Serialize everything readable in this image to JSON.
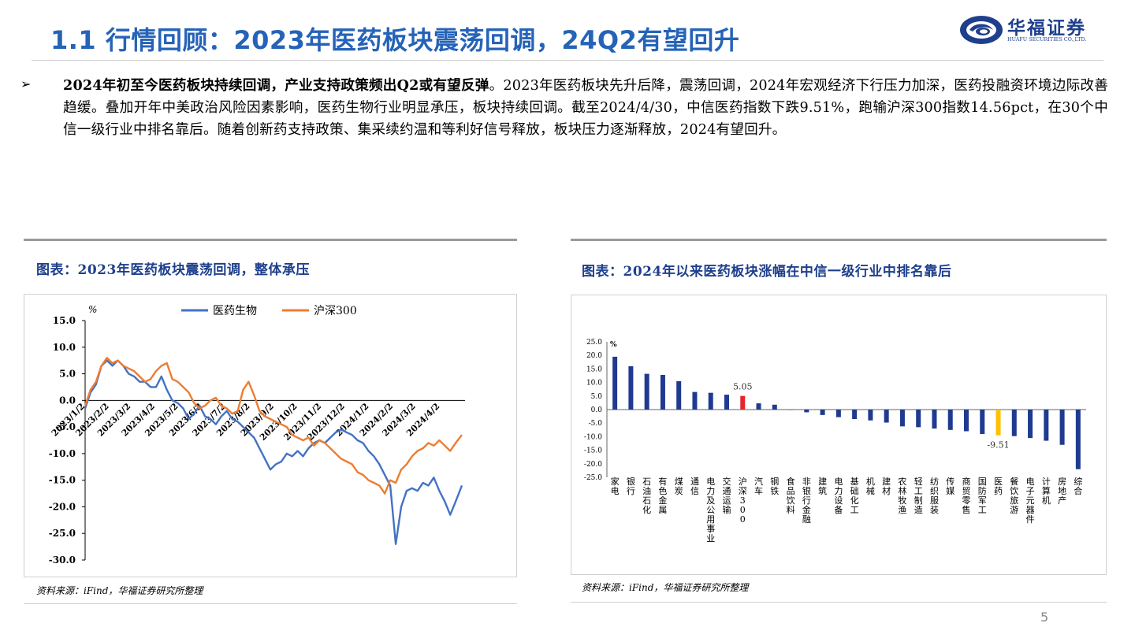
{
  "header": {
    "title": "1.1 行情回顾：2023年医药板块震荡回调，24Q2有望回升",
    "logo_cn": "华福证券",
    "logo_en": "HUAFU SECURITIES CO.,LTD.",
    "page_number": "5"
  },
  "bullet": {
    "mark": "➢",
    "bold": "2024年初至今医药板块持续回调，产业支持政策频出Q2或有望反弹",
    "text": "。2023年医药板块先升后降，震荡回调，2024年宏观经济下行压力加深，医药投融资环境边际改善趋缓。叠加开年中美政治风险因素影响，医药生物行业明显承压，板块持续回调。截至2024/4/30，中信医药指数下跌9.51%，跑输沪深300指数14.56pct，在30个中信一级行业中排名靠后。随着创新药支持政策、集采续约温和等利好信号释放，板块压力逐渐释放，2024有望回升。"
  },
  "left_panel": {
    "title": "图表：2023年医药板块震荡回调，整体承压",
    "source": "资料来源：iFind，华福证券研究所整理"
  },
  "right_panel": {
    "title": "图表：2024年以来医药板块涨幅在中信一级行业中排名靠后",
    "source": "资料来源：iFind，华福证券研究所整理"
  },
  "chart_data": [
    {
      "type": "line",
      "unit_label": "%",
      "ylim": [
        -30,
        15
      ],
      "yticks": [
        "15.0",
        "10.0",
        "5.0",
        "0.0",
        "-5.0",
        "-10.0",
        "-15.0",
        "-20.0",
        "-25.0",
        "-30.0"
      ],
      "x_ticks": [
        "2023/1/2",
        "2023/2/2",
        "2023/3/2",
        "2023/4/2",
        "2023/5/2",
        "2023/6/2",
        "2023/7/2",
        "2023/8/2",
        "2023/9/2",
        "2023/10/2",
        "2023/11/2",
        "2023/12/2",
        "2024/1/2",
        "2024/2/2",
        "2024/3/2",
        "2024/4/2"
      ],
      "legend_position": "top",
      "series": [
        {
          "name": "医药生物",
          "color": "#4472c4",
          "points": [
            [
              "2023/1/2",
              -1.5
            ],
            [
              "2023/1/9",
              1.5
            ],
            [
              "2023/1/16",
              3
            ],
            [
              "2023/1/23",
              6.5
            ],
            [
              "2023/1/30",
              7.5
            ],
            [
              "2023/2/6",
              6.5
            ],
            [
              "2023/2/13",
              7.5
            ],
            [
              "2023/2/20",
              6.5
            ],
            [
              "2023/2/27",
              5
            ],
            [
              "2023/3/6",
              4.5
            ],
            [
              "2023/3/13",
              3.5
            ],
            [
              "2023/3/20",
              3.5
            ],
            [
              "2023/3/27",
              2.5
            ],
            [
              "2023/4/3",
              2.5
            ],
            [
              "2023/4/10",
              4.5
            ],
            [
              "2023/4/17",
              2
            ],
            [
              "2023/4/24",
              0
            ],
            [
              "2023/5/1",
              -0.5
            ],
            [
              "2023/5/8",
              -1.5
            ],
            [
              "2023/5/15",
              -3.5
            ],
            [
              "2023/5/22",
              -2.5
            ],
            [
              "2023/5/29",
              -1
            ],
            [
              "2023/6/5",
              -3
            ],
            [
              "2023/6/12",
              -3.5
            ],
            [
              "2023/6/19",
              -4.5
            ],
            [
              "2023/6/26",
              -3
            ],
            [
              "2023/7/3",
              -2
            ],
            [
              "2023/7/10",
              -3.5
            ],
            [
              "2023/7/17",
              -4
            ],
            [
              "2023/7/24",
              -5
            ],
            [
              "2023/7/31",
              -6
            ],
            [
              "2023/8/7",
              -7
            ],
            [
              "2023/8/14",
              -9
            ],
            [
              "2023/8/21",
              -11
            ],
            [
              "2023/8/28",
              -13
            ],
            [
              "2023/9/4",
              -12
            ],
            [
              "2023/9/11",
              -11.5
            ],
            [
              "2023/9/18",
              -10
            ],
            [
              "2023/9/25",
              -10.5
            ],
            [
              "2023/10/2",
              -9.5
            ],
            [
              "2023/10/9",
              -10.5
            ],
            [
              "2023/10/16",
              -9
            ],
            [
              "2023/10/23",
              -8
            ],
            [
              "2023/10/30",
              -7.5
            ],
            [
              "2023/11/6",
              -8
            ],
            [
              "2023/11/13",
              -7
            ],
            [
              "2023/11/20",
              -6
            ],
            [
              "2023/11/27",
              -5.5
            ],
            [
              "2023/12/4",
              -6
            ],
            [
              "2023/12/11",
              -6.5
            ],
            [
              "2023/12/18",
              -7.5
            ],
            [
              "2023/12/25",
              -8
            ],
            [
              "2024/1/1",
              -9.5
            ],
            [
              "2024/1/8",
              -10.5
            ],
            [
              "2024/1/15",
              -12
            ],
            [
              "2024/1/22",
              -14
            ],
            [
              "2024/1/29",
              -16
            ],
            [
              "2024/2/5",
              -27
            ],
            [
              "2024/2/12",
              -20
            ],
            [
              "2024/2/19",
              -17
            ],
            [
              "2024/2/26",
              -16.5
            ],
            [
              "2024/3/4",
              -17
            ],
            [
              "2024/3/11",
              -15.5
            ],
            [
              "2024/3/18",
              -16
            ],
            [
              "2024/3/25",
              -14.5
            ],
            [
              "2024/4/1",
              -17
            ],
            [
              "2024/4/8",
              -19
            ],
            [
              "2024/4/15",
              -21.5
            ],
            [
              "2024/4/22",
              -19
            ],
            [
              "2024/4/30",
              -16
            ]
          ]
        },
        {
          "name": "沪深300",
          "color": "#ed7d31",
          "points": [
            [
              "2023/1/2",
              -1
            ],
            [
              "2023/1/9",
              2
            ],
            [
              "2023/1/16",
              3.5
            ],
            [
              "2023/1/23",
              6.5
            ],
            [
              "2023/1/30",
              8
            ],
            [
              "2023/2/6",
              7
            ],
            [
              "2023/2/13",
              7.5
            ],
            [
              "2023/2/20",
              6.5
            ],
            [
              "2023/2/27",
              6
            ],
            [
              "2023/3/6",
              5.5
            ],
            [
              "2023/3/13",
              4.5
            ],
            [
              "2023/3/20",
              3.5
            ],
            [
              "2023/3/27",
              4
            ],
            [
              "2023/4/3",
              5.5
            ],
            [
              "2023/4/10",
              6.5
            ],
            [
              "2023/4/17",
              7
            ],
            [
              "2023/4/24",
              4
            ],
            [
              "2023/5/1",
              3.5
            ],
            [
              "2023/5/8",
              2.5
            ],
            [
              "2023/5/15",
              1.5
            ],
            [
              "2023/5/22",
              -0.5
            ],
            [
              "2023/5/29",
              -1.5
            ],
            [
              "2023/6/5",
              -1
            ],
            [
              "2023/6/12",
              0
            ],
            [
              "2023/6/19",
              0.5
            ],
            [
              "2023/6/26",
              -1
            ],
            [
              "2023/7/3",
              -1.5
            ],
            [
              "2023/7/10",
              -2.5
            ],
            [
              "2023/7/17",
              -2
            ],
            [
              "2023/7/24",
              2
            ],
            [
              "2023/7/31",
              3.5
            ],
            [
              "2023/8/7",
              1
            ],
            [
              "2023/8/14",
              -2
            ],
            [
              "2023/8/21",
              -3
            ],
            [
              "2023/8/28",
              -3.5
            ],
            [
              "2023/9/4",
              -4
            ],
            [
              "2023/9/11",
              -4.5
            ],
            [
              "2023/9/18",
              -5
            ],
            [
              "2023/9/25",
              -6.5
            ],
            [
              "2023/10/2",
              -7
            ],
            [
              "2023/10/9",
              -7.5
            ],
            [
              "2023/10/16",
              -7
            ],
            [
              "2023/10/23",
              -8.5
            ],
            [
              "2023/10/30",
              -7.5
            ],
            [
              "2023/11/6",
              -8
            ],
            [
              "2023/11/13",
              -9
            ],
            [
              "2023/11/20",
              -10
            ],
            [
              "2023/11/27",
              -11
            ],
            [
              "2023/12/4",
              -11.5
            ],
            [
              "2023/12/11",
              -12
            ],
            [
              "2023/12/18",
              -13.5
            ],
            [
              "2023/12/25",
              -14
            ],
            [
              "2024/1/1",
              -15
            ],
            [
              "2024/1/8",
              -15.5
            ],
            [
              "2024/1/15",
              -16
            ],
            [
              "2024/1/22",
              -17.5
            ],
            [
              "2024/1/29",
              -15
            ],
            [
              "2024/2/5",
              -15.5
            ],
            [
              "2024/2/12",
              -13
            ],
            [
              "2024/2/19",
              -12
            ],
            [
              "2024/2/26",
              -10.5
            ],
            [
              "2024/3/4",
              -9.5
            ],
            [
              "2024/3/11",
              -9
            ],
            [
              "2024/3/18",
              -8
            ],
            [
              "2024/3/25",
              -8.5
            ],
            [
              "2024/4/1",
              -7.5
            ],
            [
              "2024/4/8",
              -8.5
            ],
            [
              "2024/4/15",
              -9.5
            ],
            [
              "2024/4/22",
              -8
            ],
            [
              "2024/4/30",
              -6.5
            ]
          ]
        }
      ]
    },
    {
      "type": "bar",
      "unit_label": "%",
      "ylim": [
        -25,
        25
      ],
      "yticks": [
        "25.0",
        "20.0",
        "15.0",
        "10.0",
        "5.0",
        "0.0",
        "-5.0",
        "-10.0",
        "-15.0",
        "-20.0",
        "-25.0"
      ],
      "categories": [
        "家电",
        "银行",
        "石油石化",
        "有色金属",
        "煤炭",
        "通信",
        "电力及公用事业",
        "交通运输",
        "沪深300",
        "汽车",
        "钢铁",
        "食品饮料",
        "非银行金融",
        "建筑",
        "电力设备",
        "基础化工",
        "机械",
        "建材",
        "农林牧渔",
        "轻工制造",
        "纺织服装",
        "传媒",
        "商贸零售",
        "国防军工",
        "医药",
        "餐饮旅游",
        "电子元器件",
        "计算机",
        "房地产",
        "综合"
      ],
      "values": [
        19.5,
        16,
        13.2,
        12.8,
        10.5,
        6.5,
        6.2,
        5.5,
        5.05,
        2.3,
        1.8,
        0,
        -1,
        -2,
        -2.8,
        -3.5,
        -4,
        -4.8,
        -6.2,
        -6.5,
        -7,
        -7.5,
        -8,
        -9,
        -9.51,
        -9.8,
        -10.5,
        -11.5,
        -13,
        -22
      ],
      "colors": {
        "default": "#1f3a8f",
        "沪深300": "#e8242b",
        "医药": "#ffc000"
      },
      "data_labels": {
        "沪深300": "5.05",
        "医药": "-9.51"
      }
    }
  ]
}
